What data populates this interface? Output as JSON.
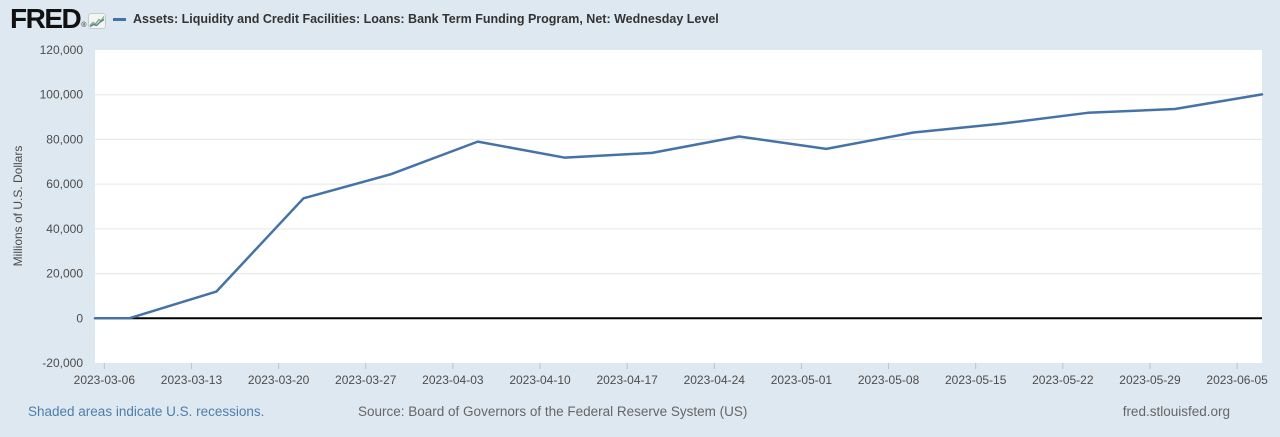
{
  "header": {
    "logo_text": "FRED",
    "registered_mark": "®",
    "legend": {
      "series_label": "Assets: Liquidity and Credit Facilities: Loans: Bank Term Funding Program, Net: Wednesday Level"
    }
  },
  "footer": {
    "recession_note": "Shaded areas indicate U.S. recessions.",
    "source": "Source: Board of Governors of the Federal Reserve System (US)",
    "site": "fred.stlouisfed.org"
  },
  "colors": {
    "background": "#dee8f0",
    "plot_background": "#ffffff",
    "line": "#4572a7",
    "gridline": "#e6e6e6",
    "zero_line": "#000000",
    "tick": "#b7c3cd",
    "axis_text": "#4d4d4d",
    "link": "#4d7eaa",
    "muted_text": "#666666",
    "legend_text": "#333333"
  },
  "chart_data": {
    "type": "line",
    "title": "Assets: Liquidity and Credit Facilities: Loans: Bank Term Funding Program, Net: Wednesday Level",
    "xlabel": "",
    "ylabel": "Millions of U.S. Dollars",
    "grid": true,
    "legend_position": "top-left",
    "ylim": [
      -20000,
      120000
    ],
    "y_ticks": [
      120000,
      100000,
      80000,
      60000,
      40000,
      20000,
      0,
      -20000
    ],
    "x_domain": [
      "2023-03-05T06:00:00Z",
      "2023-06-07T00:00:00Z"
    ],
    "x_ticks": [
      "2023-03-06",
      "2023-03-13",
      "2023-03-20",
      "2023-03-27",
      "2023-04-03",
      "2023-04-10",
      "2023-04-17",
      "2023-04-24",
      "2023-05-01",
      "2023-05-08",
      "2023-05-15",
      "2023-05-22",
      "2023-05-29",
      "2023-06-05"
    ],
    "series": [
      {
        "name": "Assets: Liquidity and Credit Facilities: Loans: Bank Term Funding Program, Net: Wednesday Level",
        "points": [
          [
            "2023-03-01",
            0
          ],
          [
            "2023-03-08",
            0
          ],
          [
            "2023-03-15",
            11943
          ],
          [
            "2023-03-22",
            53669
          ],
          [
            "2023-03-29",
            64403
          ],
          [
            "2023-04-05",
            79021
          ],
          [
            "2023-04-12",
            71837
          ],
          [
            "2023-04-19",
            73982
          ],
          [
            "2023-04-26",
            81327
          ],
          [
            "2023-05-03",
            75778
          ],
          [
            "2023-05-10",
            83101
          ],
          [
            "2023-05-17",
            87006
          ],
          [
            "2023-05-24",
            91907
          ],
          [
            "2023-05-31",
            93615
          ],
          [
            "2023-06-07",
            100161
          ]
        ]
      }
    ]
  }
}
